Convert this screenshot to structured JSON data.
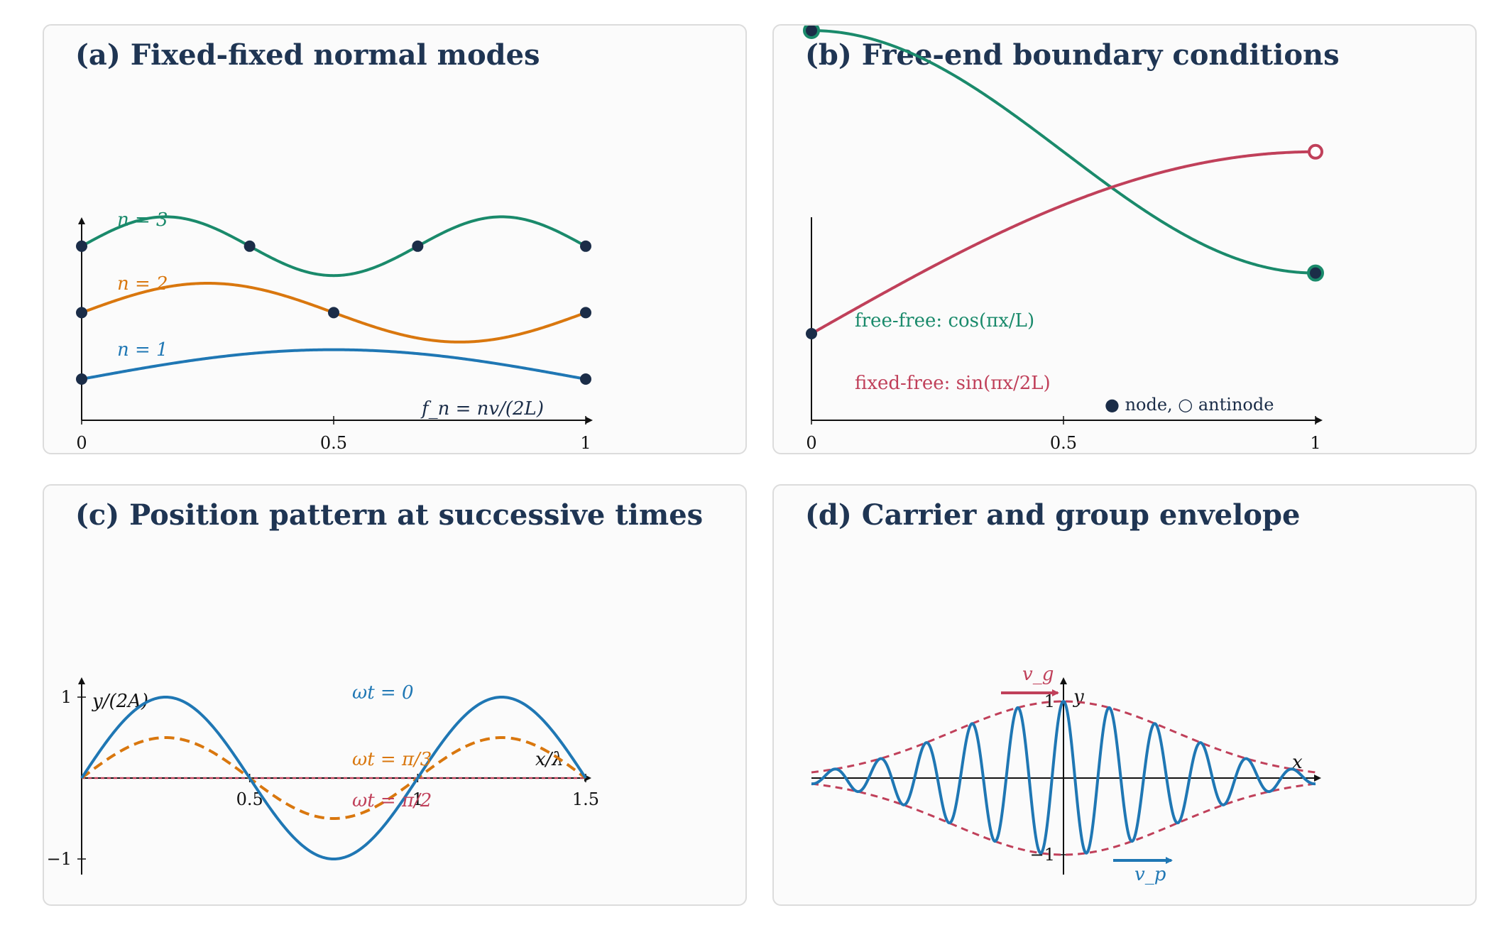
{
  "panels": {
    "a": {
      "title": "(a) Fixed-fixed normal modes"
    },
    "b": {
      "title": "(b) Free-end boundary conditions"
    },
    "c": {
      "title": "(c) Position pattern at successive times"
    },
    "d": {
      "title": "(d) Carrier and group envelope"
    }
  },
  "colors": {
    "blue": "#1f77b4",
    "orange": "#d9770e",
    "green": "#1a8a6b",
    "red": "#c0405a",
    "node": "#1b2d48",
    "axis": "#111111",
    "title": "#1f3553"
  },
  "chart_data": [
    {
      "id": "a",
      "type": "line",
      "title": "(a) Fixed-fixed normal modes",
      "x_ticks": [
        "0",
        "0.5",
        "1"
      ],
      "xlim": [
        0,
        1
      ],
      "annotation": "f_n = nv/(2L)",
      "series": [
        {
          "name": "n = 1",
          "mode": 1,
          "offset": 0.0,
          "amplitude": 0.23,
          "color": "blue",
          "node_points": [
            0,
            1
          ]
        },
        {
          "name": "n = 2",
          "mode": 2,
          "offset": 0.52,
          "amplitude": 0.23,
          "color": "orange",
          "node_points": [
            0,
            0.5,
            1
          ]
        },
        {
          "name": "n = 3",
          "mode": 3,
          "offset": 1.04,
          "amplitude": 0.23,
          "color": "green",
          "node_points": [
            0,
            0.3333,
            0.6667,
            1
          ]
        }
      ],
      "ylim": [
        -0.3,
        1.6
      ]
    },
    {
      "id": "b",
      "type": "line",
      "title": "(b) Free-end boundary conditions",
      "x_ticks": [
        "0",
        "0.5",
        "1"
      ],
      "xlim": [
        0,
        1
      ],
      "ylim": [
        0,
        1.0
      ],
      "series": [
        {
          "name": "free-free: cos(πx/L)",
          "function": "cos(pi x)",
          "offset": 0.62,
          "amplitude": 0.28,
          "color": "green"
        },
        {
          "name": "fixed-free: sin(πx/2L)",
          "function": "sin(pi x / 2)",
          "offset": 0.2,
          "amplitude": 0.42,
          "color": "red"
        }
      ],
      "legend": "● node, ○ antinode"
    },
    {
      "id": "c",
      "type": "line",
      "title": "(c) Position pattern at successive times",
      "ylabel": "y/(2A)",
      "xlabel": "x/λ",
      "x_ticks": [
        "0.5",
        "1",
        "1.5"
      ],
      "y_ticks": [
        "1",
        "−1"
      ],
      "xlim": [
        0,
        1.5
      ],
      "ylim": [
        -1.1,
        1.1
      ],
      "series": [
        {
          "name": "ωt = 0",
          "amplitude": 1.0,
          "color": "blue",
          "dash": false
        },
        {
          "name": "ωt = π/3",
          "amplitude": 0.5,
          "color": "orange",
          "dash": true
        },
        {
          "name": "ωt = π/2",
          "amplitude": 0.0,
          "color": "red",
          "dash": true
        }
      ]
    },
    {
      "id": "d",
      "type": "line",
      "title": "(d) Carrier and group envelope",
      "xlabel": "x",
      "ylabel": "y",
      "y_ticks": [
        "1",
        "−1"
      ],
      "xlim": [
        -1,
        1
      ],
      "ylim": [
        -1.1,
        1.1
      ],
      "carrier": {
        "cycles_per_unit": 5.5,
        "envelope_width": 0.62,
        "color": "blue"
      },
      "envelope": {
        "color": "red",
        "dash": true
      },
      "labels": {
        "group_velocity": "v_g",
        "phase_velocity": "v_p"
      }
    }
  ]
}
